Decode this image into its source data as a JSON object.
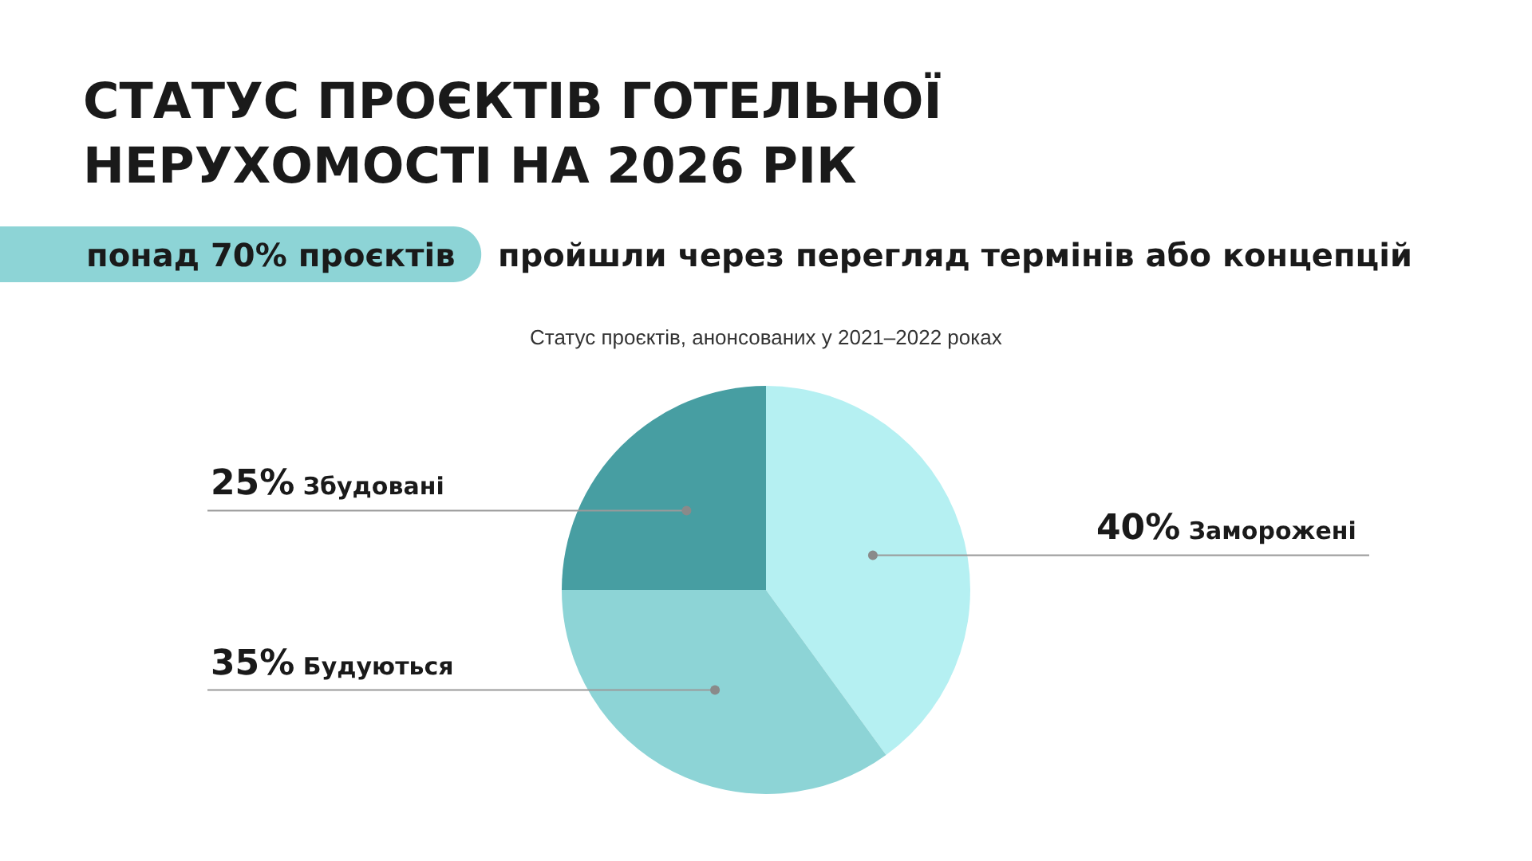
{
  "chart_data": {
    "type": "pie",
    "title": "СТАТУС ПРОЄКТІВ ГОТЕЛЬНОЇ\nНЕРУХОМОСТІ НА 2026 РІК",
    "subtitle": "Статус проєктів, анонсованих у 2021–2022 роках",
    "annotations": [
      "понад 70% проєктів",
      "пройшли через перегляд термінів або концепцій"
    ],
    "categories": [
      "Заморожені",
      "Будуються",
      "Збудовані"
    ],
    "values": [
      40,
      35,
      25
    ],
    "value_labels": [
      "40%",
      "35%",
      "25%"
    ],
    "colors": [
      "#b5f0f2",
      "#8dd4d6",
      "#479ea2"
    ]
  }
}
